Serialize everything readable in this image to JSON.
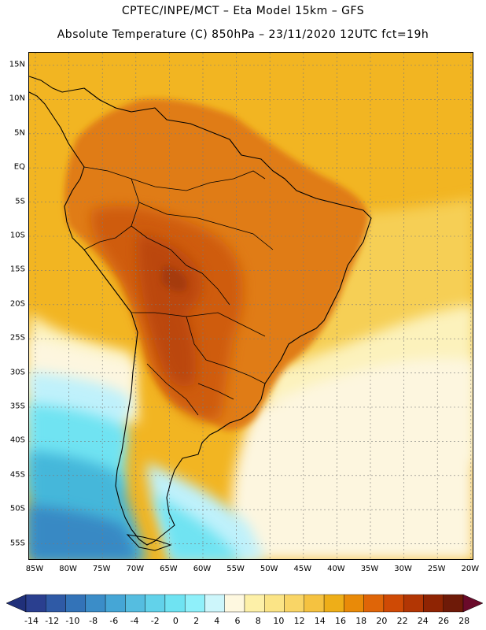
{
  "header": {
    "line1": "CPTEC/INPE/MCT –  Eta Model 15km – GFS",
    "line2": "Absolute Temperature (C) 850hPa – 23/11/2020 12UTC fct=19h"
  },
  "axes": {
    "lat_labels": [
      "15N",
      "10N",
      "5N",
      "EQ",
      "5S",
      "10S",
      "15S",
      "20S",
      "25S",
      "30S",
      "35S",
      "40S",
      "45S",
      "50S",
      "55S"
    ],
    "lon_labels": [
      "85W",
      "80W",
      "75W",
      "70W",
      "65W",
      "60W",
      "55W",
      "50W",
      "45W",
      "40W",
      "35W",
      "30W",
      "25W",
      "20W"
    ]
  },
  "colorbar": {
    "labels": [
      "-14",
      "-12",
      "-10",
      "-8",
      "-6",
      "-4",
      "-2",
      "0",
      "2",
      "4",
      "6",
      "8",
      "10",
      "12",
      "14",
      "16",
      "18",
      "20",
      "22",
      "24",
      "26",
      "28"
    ],
    "low_color": "#20307a",
    "high_color": "#6a0a2a",
    "colors": [
      "#2a3f8f",
      "#2f5aa6",
      "#3373b8",
      "#3b8dc8",
      "#45a6d6",
      "#55bde0",
      "#62d2ea",
      "#6fe3f2",
      "#8ff0fa",
      "#cdf6fb",
      "#fef8e0",
      "#fdf0a8",
      "#fbe486",
      "#f9d566",
      "#f5c240",
      "#eeae18",
      "#e98a08",
      "#df6508",
      "#cf4a05",
      "#b23604",
      "#8f2403",
      "#6e1a08"
    ]
  },
  "map": {
    "field": "850hPa temperature",
    "colors": {
      "ocean_warm": "#f2b522",
      "ocean_mild": "#f6cf55",
      "ocean_cool": "#fcf2bc",
      "cream": "#fdf6df",
      "light_cyan": "#bff1fb",
      "cyan": "#6fe3f2",
      "teal": "#44b7da",
      "blue": "#3989c4",
      "land_warm": "#e07b12",
      "land_hot": "#cf5b0a",
      "land_hotter": "#bb4708",
      "hot_core": "#a53a08",
      "coast": "#000000"
    }
  }
}
